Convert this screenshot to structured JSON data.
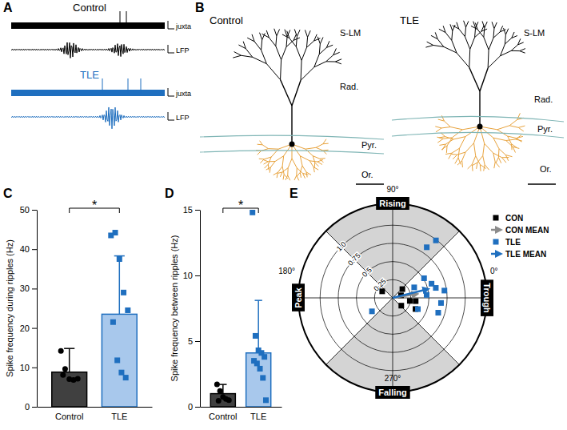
{
  "panel_a": {
    "label": "A",
    "groups": [
      {
        "title": "Control",
        "traces": [
          "juxta",
          "LFP"
        ]
      },
      {
        "title": "TLE",
        "traces": [
          "juxta",
          "LFP"
        ]
      }
    ]
  },
  "panel_b": {
    "label": "B",
    "cells": [
      {
        "title": "Control",
        "layers": [
          "S-LM",
          "Rad.",
          "Pyr.",
          "Or."
        ]
      },
      {
        "title": "TLE",
        "layers": [
          "S-LM",
          "Rad.",
          "Pyr.",
          "Or."
        ]
      }
    ]
  },
  "chart_data": [
    {
      "label": "C",
      "type": "bar",
      "categories": [
        "Control",
        "TLE"
      ],
      "values": [
        8.8,
        23.5
      ],
      "errors": [
        6.0,
        14.8
      ],
      "points": [
        [
          14.2,
          9.6,
          7.0,
          6.8,
          7.1,
          8.1
        ],
        [
          43.5,
          44.2,
          37.5,
          29.0,
          24.5,
          21.5,
          11.8,
          8.7,
          7.4
        ]
      ],
      "colors": [
        "#404040",
        "#a8c8ec"
      ],
      "y_label": "Spike frequency during ripples (Hz)",
      "ylim": [
        0,
        50
      ],
      "yticks": [
        0,
        10,
        20,
        30,
        40,
        50
      ],
      "annotations": [
        "*"
      ]
    },
    {
      "label": "D",
      "type": "bar",
      "categories": [
        "Control",
        "TLE"
      ],
      "values": [
        1.0,
        4.1
      ],
      "errors": [
        0.7,
        4.0
      ],
      "points": [
        [
          1.7,
          1.2,
          0.75,
          0.6,
          0.5,
          0.45
        ],
        [
          14.8,
          5.4,
          4.3,
          4.1,
          3.8,
          3.5,
          3.3,
          2.9,
          2.2,
          0.5
        ]
      ],
      "colors": [
        "#404040",
        "#a8c8ec"
      ],
      "y_label": "Spike frequency between ripples (Hz)",
      "ylim": [
        0,
        15
      ],
      "yticks": [
        0,
        5,
        10,
        15
      ],
      "annotations": [
        "*"
      ]
    },
    {
      "label": "E",
      "type": "polar_scatter",
      "rlim": [
        0,
        1.3
      ],
      "rticks": [
        0.25,
        0.5,
        0.75,
        {
          "value": 1,
          "label": "1.0"
        }
      ],
      "theta_ticks": [
        {
          "value": 90,
          "label": "90°"
        },
        {
          "value": 180,
          "label": "180°"
        },
        {
          "value": 0,
          "label": "0°"
        },
        {
          "value": 270,
          "label": "270°"
        }
      ],
      "theta_names": [
        "Rising",
        "Peak",
        "Trough",
        "Falling"
      ],
      "series": [
        {
          "name": "CON",
          "color": "#000000",
          "marker": "square",
          "theta": [
            148,
            17,
            350,
            352,
            318,
            42,
            334
          ],
          "r": [
            0.17,
            0.12,
            0.24,
            0.32,
            0.16,
            0.18,
            0.35
          ]
        },
        {
          "name": "TLE",
          "color": "#1f6fbf",
          "marker": "square",
          "theta": [
            26,
            13,
            32,
            342,
            354,
            5,
            336,
            53,
            56,
            213,
            20,
            8
          ],
          "r": [
            0.33,
            0.61,
            0.51,
            0.66,
            0.67,
            0.47,
            0.38,
            0.99,
            0.84,
            0.34,
            0.57,
            0.72
          ]
        }
      ],
      "means": [
        {
          "name": "CON MEAN",
          "color": "#8c8c8c",
          "theta": 9,
          "r": 0.33
        },
        {
          "name": "TLE MEAN",
          "color": "#1f6fbf",
          "theta": 14,
          "r": 0.49
        }
      ],
      "legend": "upper right"
    }
  ]
}
